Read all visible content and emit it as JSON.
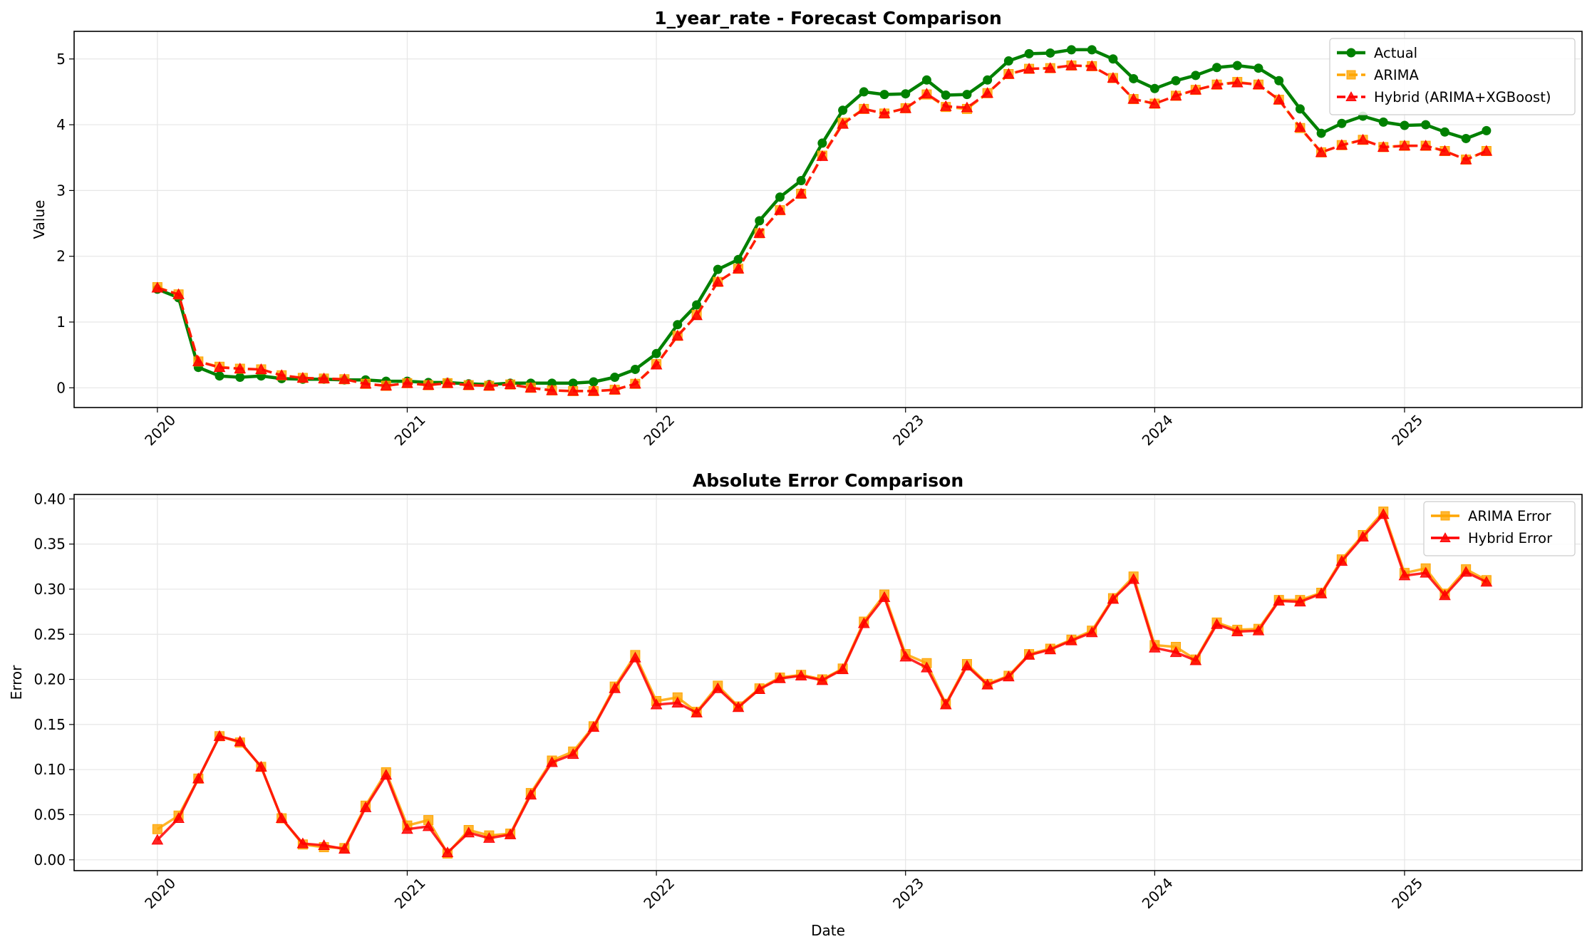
{
  "colors": {
    "actual": "#008000",
    "arima": "#FFA500",
    "hybrid": "#FF0000",
    "grid": "#e6e6e6",
    "axis": "#000000"
  },
  "chart_data": [
    {
      "type": "line",
      "title": "1_year_rate - Forecast Comparison",
      "xlabel": "",
      "ylabel": "Value",
      "x_type": "date",
      "x": [
        "2020-01-01",
        "2020-02-01",
        "2020-03-01",
        "2020-04-01",
        "2020-05-01",
        "2020-06-01",
        "2020-07-01",
        "2020-08-01",
        "2020-09-01",
        "2020-10-01",
        "2020-11-01",
        "2020-12-01",
        "2021-01-01",
        "2021-02-01",
        "2021-03-01",
        "2021-04-01",
        "2021-05-01",
        "2021-06-01",
        "2021-07-01",
        "2021-08-01",
        "2021-09-01",
        "2021-10-01",
        "2021-11-01",
        "2021-12-01",
        "2022-01-01",
        "2022-02-01",
        "2022-03-01",
        "2022-04-01",
        "2022-05-01",
        "2022-06-01",
        "2022-07-01",
        "2022-08-01",
        "2022-09-01",
        "2022-10-01",
        "2022-11-01",
        "2022-12-01",
        "2023-01-01",
        "2023-02-01",
        "2023-03-01",
        "2023-04-01",
        "2023-05-01",
        "2023-06-01",
        "2023-07-01",
        "2023-08-01",
        "2023-09-01",
        "2023-10-01",
        "2023-11-01",
        "2023-12-01",
        "2024-01-01",
        "2024-02-01",
        "2024-03-01",
        "2024-04-01",
        "2024-05-01",
        "2024-06-01",
        "2024-07-01",
        "2024-08-01",
        "2024-09-01",
        "2024-10-01",
        "2024-11-01",
        "2024-12-01",
        "2025-01-01",
        "2025-02-01",
        "2025-03-01",
        "2025-04-01",
        "2025-05-01"
      ],
      "xticks": [
        "2020",
        "2021",
        "2022",
        "2023",
        "2024",
        "2025"
      ],
      "xlim": [
        "2019-09-01",
        "2025-09-18"
      ],
      "ylim": [
        -0.3,
        5.42
      ],
      "yticks": [
        0,
        1,
        2,
        3,
        4,
        5
      ],
      "grid": true,
      "legend": "top-right",
      "series": [
        {
          "name": "Actual",
          "color": "#008000",
          "marker": "circle",
          "linestyle": "solid",
          "values": [
            1.5,
            1.37,
            0.31,
            0.18,
            0.16,
            0.18,
            0.14,
            0.13,
            0.13,
            0.12,
            0.12,
            0.1,
            0.1,
            0.08,
            0.08,
            0.06,
            0.05,
            0.07,
            0.07,
            0.07,
            0.07,
            0.09,
            0.16,
            0.28,
            0.52,
            0.96,
            1.26,
            1.8,
            1.95,
            2.54,
            2.9,
            3.15,
            3.72,
            4.22,
            4.5,
            4.46,
            4.47,
            4.68,
            4.45,
            4.46,
            4.68,
            4.97,
            5.08,
            5.09,
            5.14,
            5.14,
            5.0,
            4.7,
            4.55,
            4.67,
            4.75,
            4.87,
            4.9,
            4.86,
            4.67,
            4.24,
            3.87,
            4.02,
            4.13,
            4.04,
            3.99,
            4.0,
            3.89,
            3.79,
            3.91
          ]
        },
        {
          "name": "ARIMA",
          "color": "#FFA500",
          "marker": "square",
          "linestyle": "dashed",
          "values": [
            1.53,
            1.42,
            0.4,
            0.32,
            0.29,
            0.28,
            0.19,
            0.15,
            0.14,
            0.13,
            0.06,
            0.03,
            0.07,
            0.04,
            0.07,
            0.04,
            0.03,
            0.05,
            0.0,
            -0.04,
            -0.05,
            -0.05,
            -0.03,
            0.06,
            0.36,
            0.79,
            1.11,
            1.61,
            1.81,
            2.35,
            2.7,
            2.95,
            3.53,
            4.03,
            4.24,
            4.17,
            4.25,
            4.46,
            4.27,
            4.24,
            4.48,
            4.77,
            4.85,
            4.86,
            4.9,
            4.89,
            4.71,
            4.39,
            4.32,
            4.44,
            4.53,
            4.61,
            4.65,
            4.61,
            4.38,
            3.95,
            3.58,
            3.69,
            3.77,
            3.66,
            3.68,
            3.68,
            3.6,
            3.47,
            3.6
          ]
        },
        {
          "name": "Hybrid (ARIMA+XGBoost)",
          "color": "#FF0000",
          "marker": "triangle",
          "linestyle": "dashed",
          "values": [
            1.52,
            1.42,
            0.4,
            0.31,
            0.29,
            0.28,
            0.19,
            0.15,
            0.14,
            0.13,
            0.06,
            0.03,
            0.07,
            0.04,
            0.07,
            0.04,
            0.03,
            0.05,
            0.0,
            -0.04,
            -0.05,
            -0.05,
            -0.03,
            0.06,
            0.35,
            0.79,
            1.1,
            1.61,
            1.81,
            2.35,
            2.7,
            2.95,
            3.52,
            4.01,
            4.24,
            4.17,
            4.25,
            4.47,
            4.28,
            4.26,
            4.48,
            4.77,
            4.85,
            4.86,
            4.9,
            4.89,
            4.71,
            4.39,
            4.32,
            4.44,
            4.53,
            4.61,
            4.64,
            4.61,
            4.38,
            3.96,
            3.58,
            3.69,
            3.77,
            3.66,
            3.68,
            3.68,
            3.6,
            3.47,
            3.6
          ]
        }
      ]
    },
    {
      "type": "line",
      "title": "Absolute Error Comparison",
      "xlabel": "Date",
      "ylabel": "Error",
      "x_type": "date",
      "x": [
        "2020-01-01",
        "2020-02-01",
        "2020-03-01",
        "2020-04-01",
        "2020-05-01",
        "2020-06-01",
        "2020-07-01",
        "2020-08-01",
        "2020-09-01",
        "2020-10-01",
        "2020-11-01",
        "2020-12-01",
        "2021-01-01",
        "2021-02-01",
        "2021-03-01",
        "2021-04-01",
        "2021-05-01",
        "2021-06-01",
        "2021-07-01",
        "2021-08-01",
        "2021-09-01",
        "2021-10-01",
        "2021-11-01",
        "2021-12-01",
        "2022-01-01",
        "2022-02-01",
        "2022-03-01",
        "2022-04-01",
        "2022-05-01",
        "2022-06-01",
        "2022-07-01",
        "2022-08-01",
        "2022-09-01",
        "2022-10-01",
        "2022-11-01",
        "2022-12-01",
        "2023-01-01",
        "2023-02-01",
        "2023-03-01",
        "2023-04-01",
        "2023-05-01",
        "2023-06-01",
        "2023-07-01",
        "2023-08-01",
        "2023-09-01",
        "2023-10-01",
        "2023-11-01",
        "2023-12-01",
        "2024-01-01",
        "2024-02-01",
        "2024-03-01",
        "2024-04-01",
        "2024-05-01",
        "2024-06-01",
        "2024-07-01",
        "2024-08-01",
        "2024-09-01",
        "2024-10-01",
        "2024-11-01",
        "2024-12-01",
        "2025-01-01",
        "2025-02-01",
        "2025-03-01",
        "2025-04-01",
        "2025-05-01"
      ],
      "xticks": [
        "2020",
        "2021",
        "2022",
        "2023",
        "2024",
        "2025"
      ],
      "xlim": [
        "2019-09-01",
        "2025-09-18"
      ],
      "ylim": [
        -0.012,
        0.405
      ],
      "yticks": [
        "0.00",
        "0.05",
        "0.10",
        "0.15",
        "0.20",
        "0.25",
        "0.30",
        "0.35",
        "0.40"
      ],
      "grid": true,
      "legend": "top-right",
      "series": [
        {
          "name": "ARIMA Error",
          "color": "#FFA500",
          "marker": "square",
          "linestyle": "solid",
          "values": [
            0.034,
            0.049,
            0.09,
            0.137,
            0.13,
            0.103,
            0.046,
            0.017,
            0.014,
            0.013,
            0.06,
            0.097,
            0.038,
            0.044,
            0.007,
            0.033,
            0.027,
            0.029,
            0.074,
            0.11,
            0.12,
            0.148,
            0.192,
            0.227,
            0.176,
            0.18,
            0.164,
            0.193,
            0.17,
            0.19,
            0.202,
            0.205,
            0.2,
            0.212,
            0.264,
            0.294,
            0.228,
            0.218,
            0.173,
            0.217,
            0.195,
            0.204,
            0.228,
            0.234,
            0.244,
            0.254,
            0.29,
            0.314,
            0.238,
            0.236,
            0.222,
            0.263,
            0.255,
            0.256,
            0.288,
            0.288,
            0.296,
            0.333,
            0.36,
            0.386,
            0.318,
            0.323,
            0.295,
            0.322,
            0.31
          ]
        },
        {
          "name": "Hybrid Error",
          "color": "#FF0000",
          "marker": "triangle",
          "linestyle": "solid",
          "values": [
            0.022,
            0.046,
            0.09,
            0.137,
            0.131,
            0.103,
            0.046,
            0.018,
            0.016,
            0.012,
            0.058,
            0.094,
            0.034,
            0.037,
            0.008,
            0.03,
            0.024,
            0.028,
            0.072,
            0.108,
            0.117,
            0.147,
            0.19,
            0.224,
            0.172,
            0.174,
            0.163,
            0.19,
            0.169,
            0.189,
            0.201,
            0.204,
            0.199,
            0.211,
            0.262,
            0.291,
            0.225,
            0.213,
            0.172,
            0.215,
            0.194,
            0.203,
            0.227,
            0.233,
            0.243,
            0.252,
            0.289,
            0.311,
            0.235,
            0.23,
            0.221,
            0.261,
            0.253,
            0.254,
            0.287,
            0.286,
            0.295,
            0.331,
            0.358,
            0.383,
            0.315,
            0.318,
            0.293,
            0.319,
            0.308
          ]
        }
      ]
    }
  ]
}
